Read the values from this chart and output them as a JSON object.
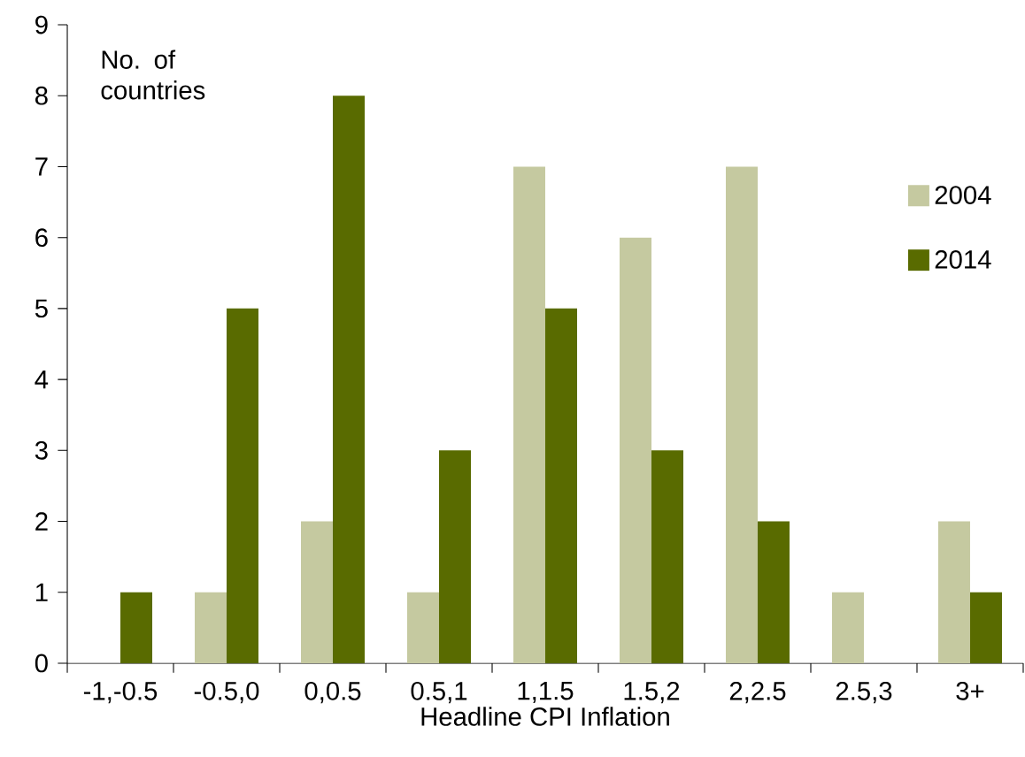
{
  "chart_data": {
    "type": "bar",
    "xlabel": "Headline CPI Inflation",
    "ylabel": "No. of countries",
    "categories": [
      "-1,-0.5",
      "-0.5,0",
      "0,0.5",
      "0.5,1",
      "1,1.5",
      "1.5,2",
      "2,2.5",
      "2.5,3",
      "3+"
    ],
    "series": [
      {
        "name": "2004",
        "color": "#c5c9a0",
        "values": [
          0,
          1,
          2,
          1,
          7,
          6,
          7,
          1,
          2
        ]
      },
      {
        "name": "2014",
        "color": "#596b00",
        "values": [
          1,
          5,
          8,
          3,
          5,
          3,
          2,
          0,
          1
        ]
      }
    ],
    "ylim": [
      0,
      9
    ],
    "yticks": [
      0,
      1,
      2,
      3,
      4,
      5,
      6,
      7,
      8,
      9
    ],
    "legend": "right",
    "grid": false
  }
}
